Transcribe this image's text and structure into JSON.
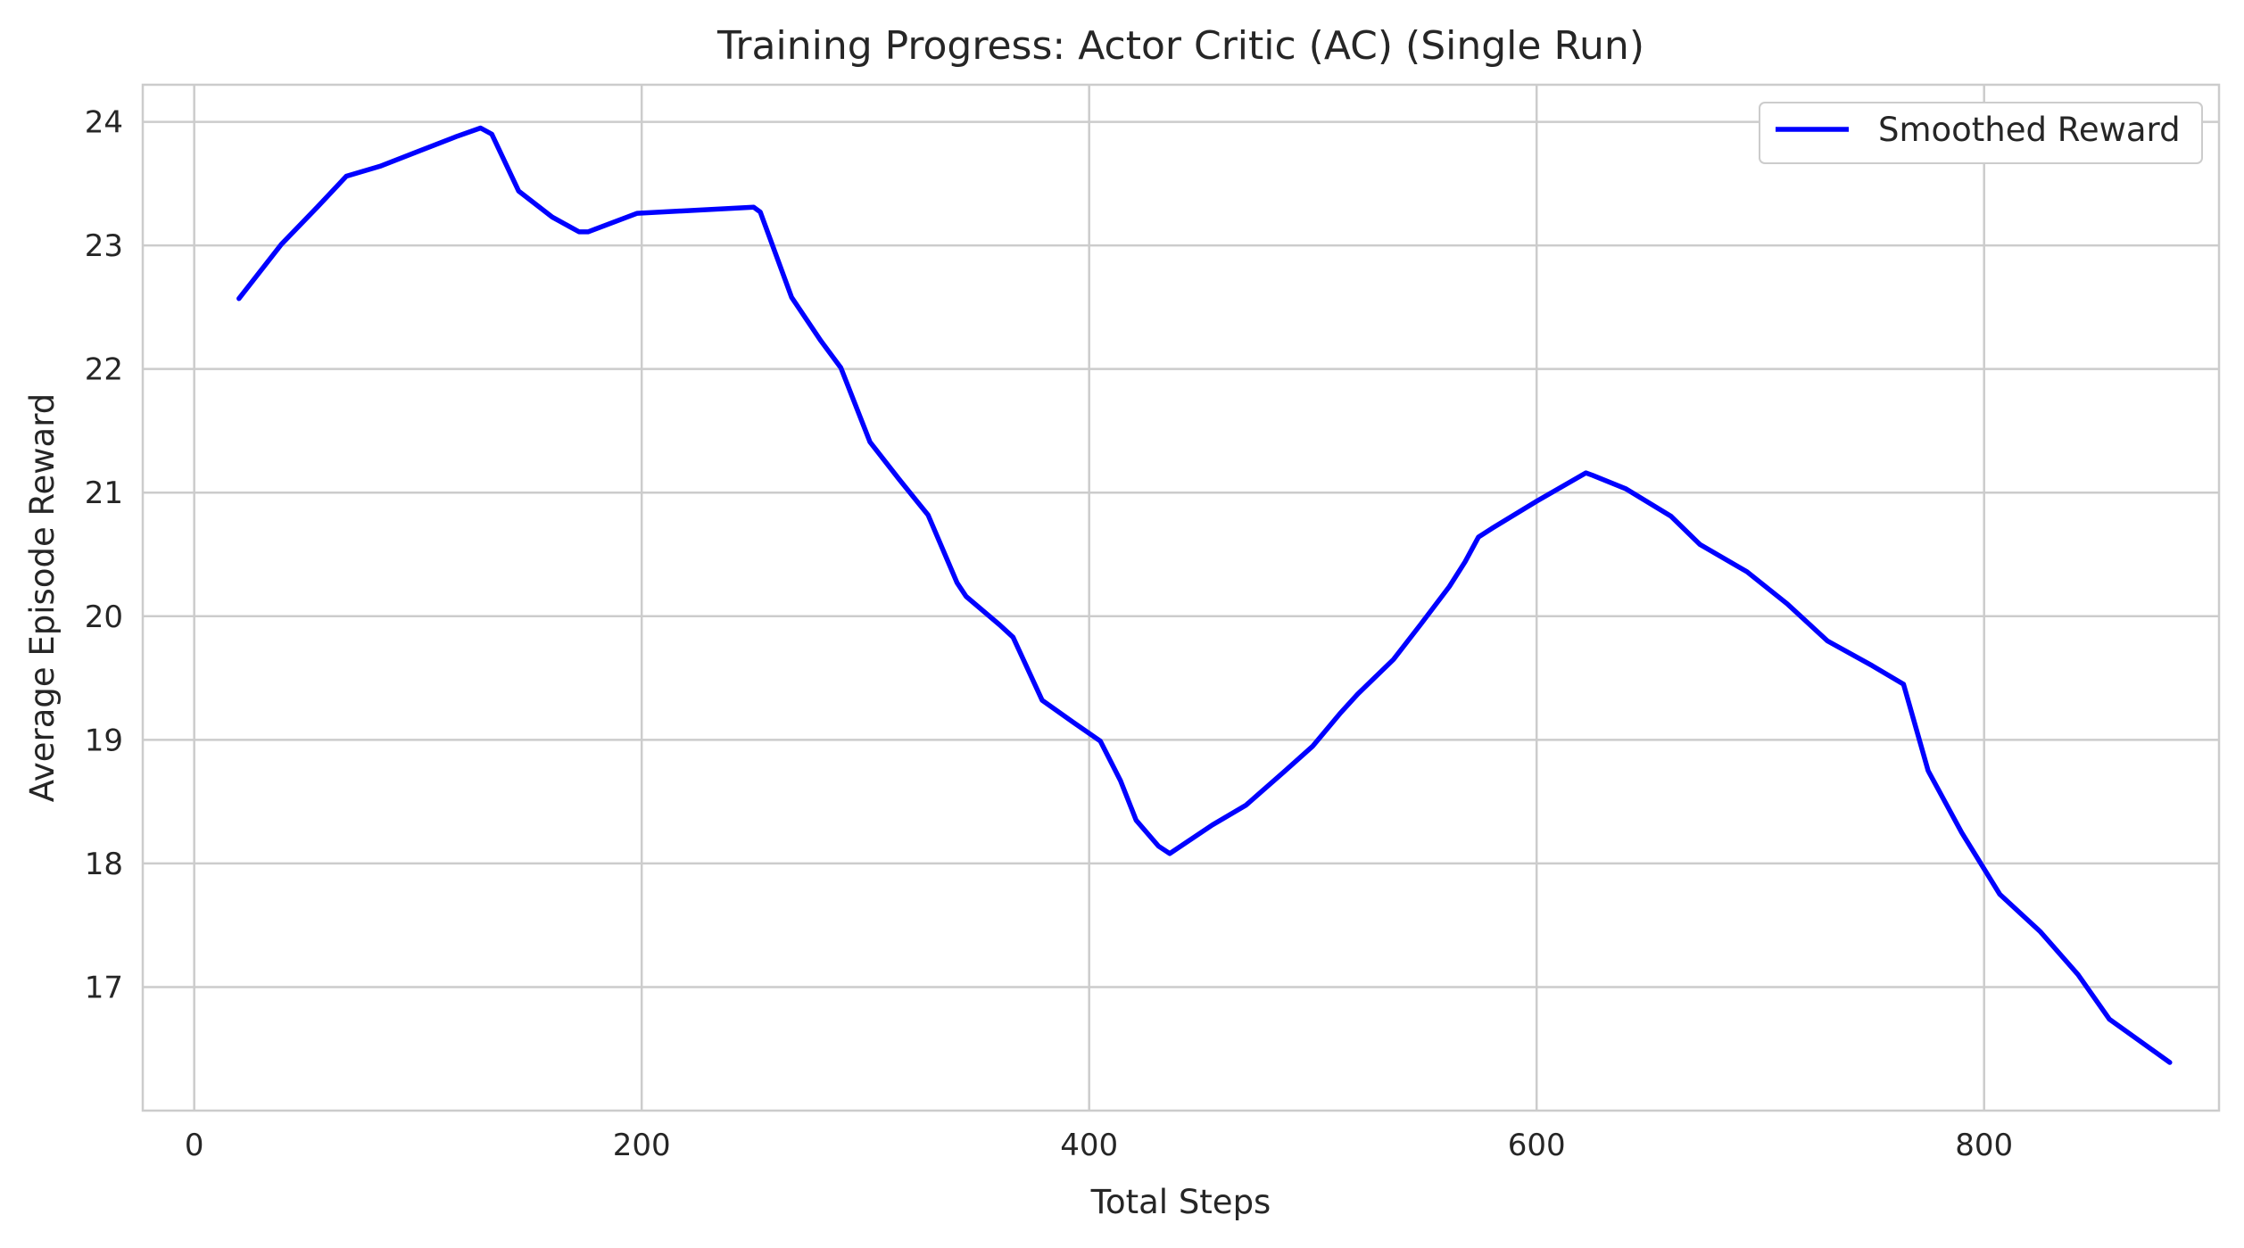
{
  "chart_data": {
    "type": "line",
    "title": "Training Progress: Actor Critic (AC) (Single Run)",
    "xlabel": "Total Steps",
    "ylabel": "Average Episode Reward",
    "xlim": [
      -23,
      905
    ],
    "ylim": [
      16.0,
      24.3
    ],
    "xticks": [
      0,
      200,
      400,
      600,
      800
    ],
    "yticks": [
      17,
      18,
      19,
      20,
      21,
      22,
      23,
      24
    ],
    "grid": true,
    "legend_position": "top-right",
    "series": [
      {
        "name": "Smoothed Reward",
        "color": "#0000ff",
        "x": [
          20,
          39,
          55,
          68,
          83,
          100,
          117,
          128,
          133,
          145,
          160,
          172,
          176,
          198,
          250,
          253,
          267,
          280,
          289,
          302,
          315,
          323,
          328,
          341,
          345,
          360,
          366,
          379,
          393,
          405,
          414,
          421,
          431,
          436,
          455,
          470,
          487,
          500,
          512,
          520,
          536,
          548,
          561,
          568,
          574,
          580,
          600,
          622,
          625,
          640,
          660,
          673,
          694,
          712,
          730,
          750,
          764,
          775,
          790,
          807,
          825,
          842,
          856,
          883
        ],
        "y": [
          22.57,
          23.01,
          23.31,
          23.56,
          23.64,
          23.76,
          23.88,
          23.95,
          23.9,
          23.44,
          23.23,
          23.11,
          23.11,
          23.26,
          23.31,
          23.27,
          22.58,
          22.23,
          22.01,
          21.41,
          21.11,
          20.93,
          20.82,
          20.27,
          20.16,
          19.93,
          19.83,
          19.32,
          19.14,
          18.99,
          18.67,
          18.35,
          18.14,
          18.08,
          18.31,
          18.47,
          18.74,
          18.95,
          19.21,
          19.37,
          19.65,
          19.93,
          20.24,
          20.44,
          20.64,
          20.71,
          20.93,
          21.16,
          21.14,
          21.03,
          20.81,
          20.58,
          20.36,
          20.1,
          19.8,
          19.6,
          19.45,
          18.75,
          18.25,
          17.75,
          17.45,
          17.1,
          16.74,
          16.39
        ]
      }
    ]
  }
}
